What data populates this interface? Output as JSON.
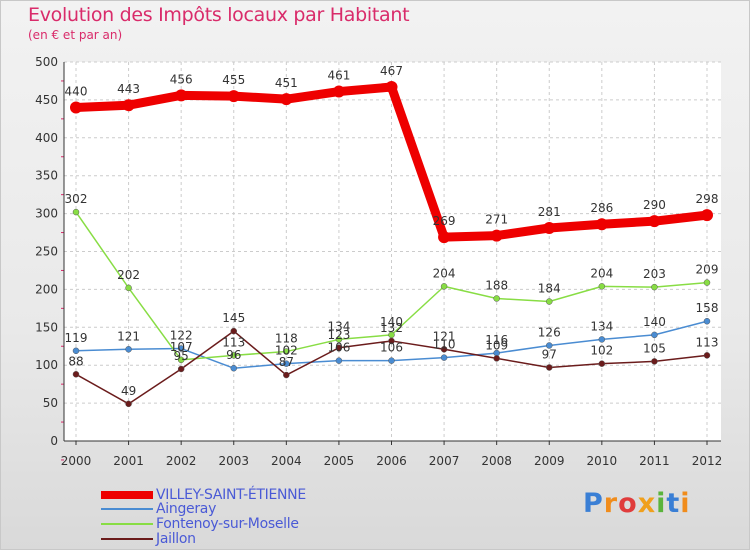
{
  "title": "Evolution des Impôts locaux par Habitant",
  "subtitle": "(en € et par an)",
  "brand": {
    "letters": [
      "P",
      "r",
      "o",
      "x",
      "i",
      "t",
      "i"
    ],
    "colors": [
      "#3a7fd5",
      "#f08c1c",
      "#e03c3c",
      "#f0a01c",
      "#5ab43c",
      "#3a7fd5",
      "#f08c1c"
    ]
  },
  "chart_data": {
    "type": "line",
    "categories": [
      "2000",
      "2001",
      "2002",
      "2003",
      "2004",
      "2005",
      "2006",
      "2007",
      "2008",
      "2009",
      "2010",
      "2011",
      "2012"
    ],
    "ylim": [
      0,
      500
    ],
    "yticks": [
      0,
      50,
      100,
      150,
      200,
      250,
      300,
      350,
      400,
      450,
      500
    ],
    "grid": true,
    "legend_position": "bottom-left",
    "series": [
      {
        "name": "VILLEY-SAINT-ÉTIENNE",
        "color": "#ee0000",
        "values": [
          440,
          443,
          456,
          455,
          451,
          461,
          467,
          269,
          271,
          281,
          286,
          290,
          298
        ]
      },
      {
        "name": "Aingeray",
        "color": "#4a8cd2",
        "values": [
          119,
          121,
          122,
          96,
          102,
          106,
          106,
          110,
          116,
          126,
          134,
          140,
          158
        ]
      },
      {
        "name": "Fontenoy-sur-Moselle",
        "color": "#88dd44",
        "values": [
          302,
          202,
          107,
          113,
          118,
          134,
          140,
          204,
          188,
          184,
          204,
          203,
          209
        ]
      },
      {
        "name": "Jaillon",
        "color": "#6b1c1c",
        "values": [
          88,
          49,
          95,
          145,
          87,
          123,
          132,
          121,
          109,
          97,
          102,
          105,
          113
        ]
      }
    ]
  }
}
